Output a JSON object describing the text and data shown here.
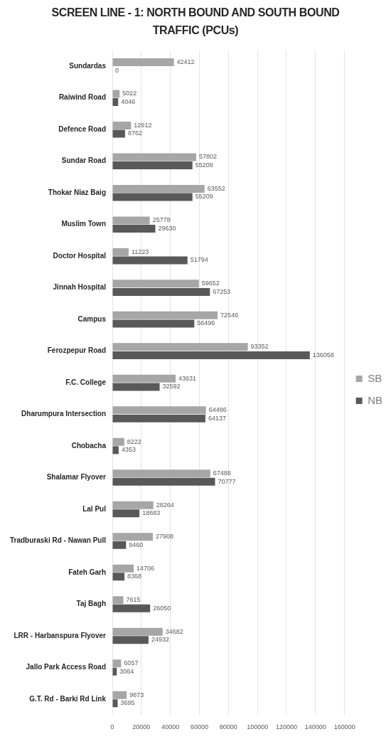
{
  "chart_data": {
    "type": "bar",
    "orientation": "horizontal",
    "title": "SCREEN LINE - 1: NORTH BOUND AND SOUTH BOUND TRAFFIC (PCUs)",
    "categories": [
      "Sundardas",
      "Raiwind Road",
      "Defence Road",
      "Sundar Road",
      "Thokar Niaz Baig",
      "Muslim Town",
      "Doctor Hospital",
      "Jinnah Hospital",
      "Campus",
      "Ferozpepur Road",
      "F.C. College",
      "Dharumpura Intersection",
      "Chobacha",
      "Shalamar Flyover",
      "Lal Pul",
      "Tradburaski Rd - Nawan Pull",
      "Fateh Garh",
      "Taj Bagh",
      "LRR - Harbanspura Flyover",
      "Jallo Park Access Road",
      "G.T. Rd - Barki Rd Link"
    ],
    "series": [
      {
        "name": "SB",
        "color": "#a6a6a6",
        "values": [
          42412,
          5022,
          12912,
          57802,
          63552,
          25778,
          11223,
          59652,
          72546,
          93352,
          43631,
          64486,
          8222,
          67488,
          28264,
          27908,
          14706,
          7615,
          34682,
          6057,
          9873
        ]
      },
      {
        "name": "NB",
        "color": "#595959",
        "values": [
          0,
          4046,
          8762,
          55209,
          55209,
          29630,
          51794,
          67253,
          56496,
          136058,
          32592,
          64137,
          4353,
          70777,
          18683,
          9460,
          8368,
          26050,
          24932,
          3064,
          3695
        ]
      }
    ],
    "xlim": [
      0,
      160000
    ],
    "xticks": [
      0,
      20000,
      40000,
      60000,
      80000,
      100000,
      120000,
      140000,
      160000
    ],
    "grid": "x",
    "legend": "right",
    "data_labels": true
  }
}
